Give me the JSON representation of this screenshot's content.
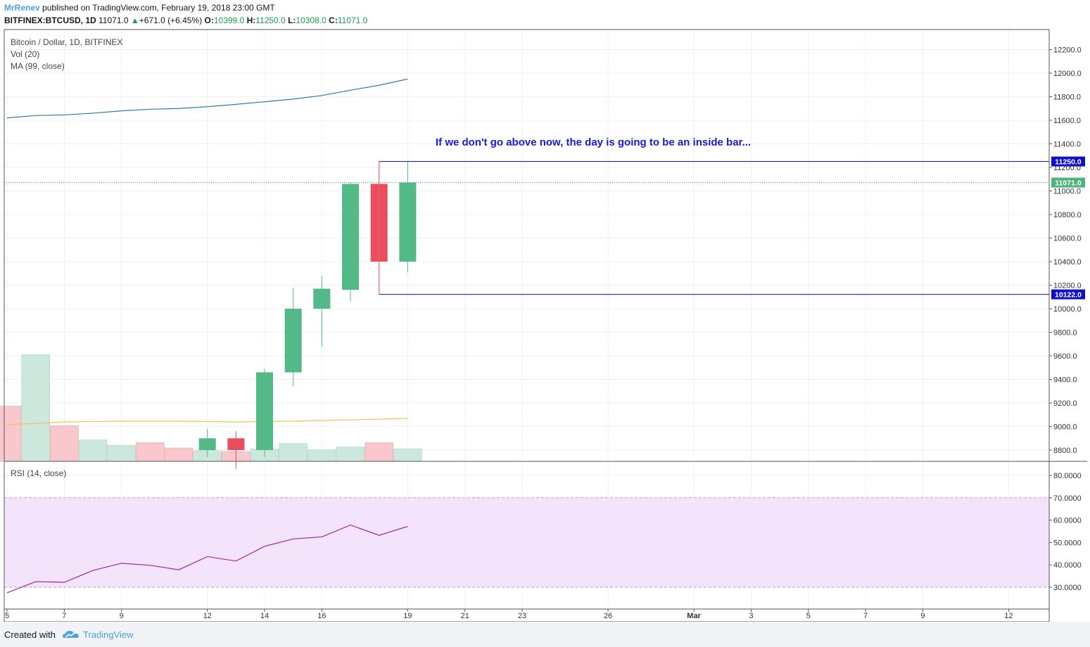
{
  "header": {
    "author": "MrRenev",
    "published_text": "published on TradingView.com, February 19, 2018 23:00 GMT",
    "symbol": "BITFINEX:BTCUSD, 1D",
    "last_price": "11071.0",
    "change_arrow": "▲",
    "change": "+671.0 (+6.45%)",
    "open_label": "O:",
    "open_value": "10399.0",
    "high_label": "H:",
    "high_value": "11250.0",
    "low_label": "L:",
    "low_value": "10308.0",
    "close_label": "C:",
    "close_value": "11071.0"
  },
  "legend": {
    "line1": "Bitcoin / Dollar, 1D, BITFINEX",
    "line2": "Vol (20)",
    "line3": "MA (99, close)"
  },
  "rsi_legend": "RSI (14, close)",
  "footer": {
    "created_with": "Created with",
    "brand": "TradingView"
  },
  "colors": {
    "up": "#53b987",
    "down": "#eb4d5c",
    "vol_up": "#cce8dc",
    "vol_down": "#f8c8cd",
    "ma_line": "#2e7ea6",
    "vol_ma": "#f5c25c",
    "rsi_line": "#9c27b0",
    "rsi_band": "#f3e3fb",
    "level_line": "#0b0bb0",
    "last_price_line": "#1a9d4e",
    "annotation": "#1a1ad6"
  },
  "chart_data": {
    "type": "candlestick",
    "x_ticks": [
      "5",
      "7",
      "9",
      "12",
      "14",
      "16",
      "19",
      "21",
      "23",
      "26",
      "Mar",
      "3",
      "5",
      "7",
      "9",
      "12"
    ],
    "x_tick_days": [
      5,
      7,
      9,
      12,
      14,
      16,
      19,
      21,
      23,
      26,
      29,
      31,
      33,
      35,
      37,
      40
    ],
    "price_axis": {
      "ticks": [
        "12200.0",
        "12000.0",
        "11800.0",
        "11600.0",
        "11400.0",
        "11200.0",
        "11000.0",
        "10800.0",
        "10600.0",
        "10400.0",
        "10200.0",
        "10000.0",
        "9800.0",
        "9600.0",
        "9400.0",
        "9200.0",
        "9000.0",
        "8800.0"
      ]
    },
    "candles": [
      {
        "day": 12,
        "open": 8800,
        "high": 8980,
        "low": 8740,
        "close": 8900
      },
      {
        "day": 13,
        "open": 8900,
        "high": 8960,
        "low": 8640,
        "close": 8800
      },
      {
        "day": 14,
        "open": 8800,
        "high": 9490,
        "low": 8740,
        "close": 9460
      },
      {
        "day": 15,
        "open": 9460,
        "high": 10180,
        "low": 9340,
        "close": 10000
      },
      {
        "day": 16,
        "open": 10000,
        "high": 10280,
        "low": 9680,
        "close": 10170
      },
      {
        "day": 17,
        "open": 10160,
        "high": 11070,
        "low": 10060,
        "close": 11060
      },
      {
        "day": 18,
        "open": 11060,
        "high": 11250,
        "low": 10130,
        "close": 10400
      },
      {
        "day": 19,
        "open": 10399,
        "high": 11250,
        "low": 10308,
        "close": 11071
      }
    ],
    "volume": [
      {
        "day": 5,
        "value": 3.1,
        "dir": "down"
      },
      {
        "day": 6,
        "value": 6.0,
        "dir": "up"
      },
      {
        "day": 7,
        "value": 2.0,
        "dir": "down"
      },
      {
        "day": 8,
        "value": 1.2,
        "dir": "up"
      },
      {
        "day": 9,
        "value": 0.9,
        "dir": "up"
      },
      {
        "day": 10,
        "value": 1.05,
        "dir": "down"
      },
      {
        "day": 11,
        "value": 0.75,
        "dir": "down"
      },
      {
        "day": 12,
        "value": 0.6,
        "dir": "up"
      },
      {
        "day": 13,
        "value": 0.55,
        "dir": "down"
      },
      {
        "day": 14,
        "value": 0.7,
        "dir": "up"
      },
      {
        "day": 15,
        "value": 1.0,
        "dir": "up"
      },
      {
        "day": 16,
        "value": 0.65,
        "dir": "up"
      },
      {
        "day": 17,
        "value": 0.8,
        "dir": "up"
      },
      {
        "day": 18,
        "value": 1.05,
        "dir": "down"
      },
      {
        "day": 19,
        "value": 0.7,
        "dir": "up"
      }
    ],
    "ma99": [
      {
        "day": 5,
        "value": 11620
      },
      {
        "day": 6,
        "value": 11640
      },
      {
        "day": 7,
        "value": 11645
      },
      {
        "day": 8,
        "value": 11660
      },
      {
        "day": 9,
        "value": 11680
      },
      {
        "day": 10,
        "value": 11693
      },
      {
        "day": 11,
        "value": 11700
      },
      {
        "day": 12,
        "value": 11715
      },
      {
        "day": 13,
        "value": 11735
      },
      {
        "day": 14,
        "value": 11757
      },
      {
        "day": 15,
        "value": 11780
      },
      {
        "day": 16,
        "value": 11810
      },
      {
        "day": 17,
        "value": 11855
      },
      {
        "day": 18,
        "value": 11897
      },
      {
        "day": 19,
        "value": 11950
      }
    ],
    "levels": [
      {
        "label": "11250.0",
        "value": 11250,
        "from_day": 18
      },
      {
        "label": "10122.0",
        "value": 10122,
        "from_day": 18
      }
    ],
    "last_price": {
      "label": "11071.0",
      "value": 11071
    },
    "annotation": "If we don't go above now, the day is going to be an inside bar...",
    "rsi": {
      "ticks": [
        "80.0000",
        "70.0000",
        "60.0000",
        "50.0000",
        "40.0000",
        "30.0000"
      ],
      "band": [
        30,
        70
      ],
      "values": [
        {
          "day": 5,
          "value": 27.5
        },
        {
          "day": 6,
          "value": 32.5
        },
        {
          "day": 7,
          "value": 32.2
        },
        {
          "day": 8,
          "value": 37.5
        },
        {
          "day": 9,
          "value": 40.7
        },
        {
          "day": 10,
          "value": 39.8
        },
        {
          "day": 11,
          "value": 37.8
        },
        {
          "day": 12,
          "value": 43.7
        },
        {
          "day": 13,
          "value": 41.7
        },
        {
          "day": 14,
          "value": 48.3
        },
        {
          "day": 15,
          "value": 51.6
        },
        {
          "day": 16,
          "value": 52.5
        },
        {
          "day": 17,
          "value": 57.8
        },
        {
          "day": 18,
          "value": 53.2
        },
        {
          "day": 19,
          "value": 57.2
        }
      ]
    }
  }
}
